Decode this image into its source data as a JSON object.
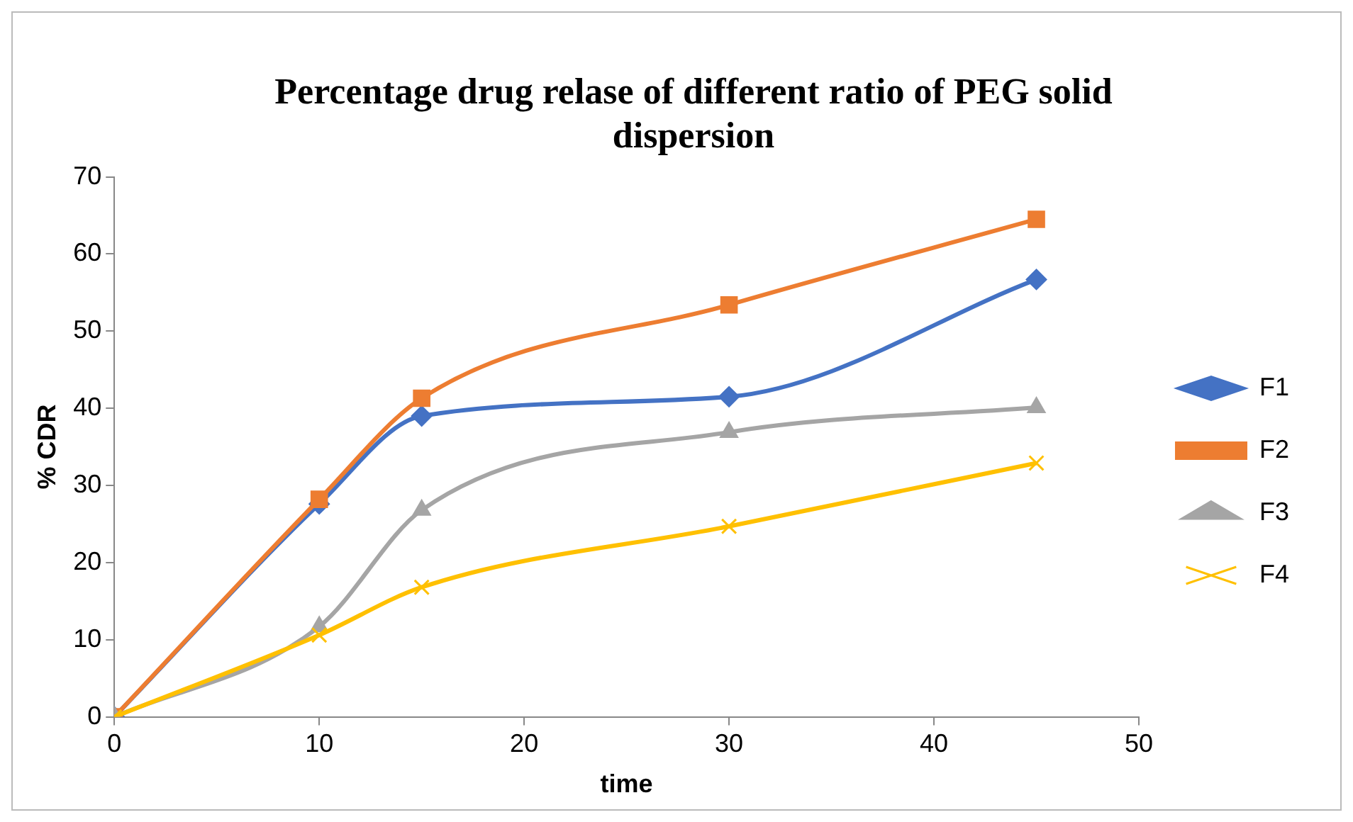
{
  "chart_data": {
    "type": "line",
    "title": "Percentage drug relase of different ratio of PEG solid dispersion",
    "xlabel": "time",
    "ylabel": "% CDR",
    "x": [
      0,
      10,
      15,
      30,
      45
    ],
    "series": [
      {
        "name": "F1",
        "color": "#4472c4",
        "marker": "diamond",
        "values": [
          0,
          27.6,
          39.0,
          41.5,
          56.7
        ]
      },
      {
        "name": "F2",
        "color": "#ed7d31",
        "marker": "square",
        "values": [
          0,
          28.2,
          41.3,
          53.4,
          64.5
        ]
      },
      {
        "name": "F3",
        "color": "#a5a5a5",
        "marker": "triangle",
        "values": [
          0,
          11.7,
          26.8,
          36.9,
          40.1
        ]
      },
      {
        "name": "F4",
        "color": "#ffc000",
        "marker": "cross",
        "values": [
          0,
          10.6,
          16.8,
          24.7,
          32.9
        ]
      }
    ],
    "xlim": [
      0,
      50
    ],
    "xticks": [
      0,
      10,
      20,
      30,
      40,
      50
    ],
    "ylim": [
      0,
      70
    ],
    "yticks": [
      0,
      10,
      20,
      30,
      40,
      50,
      60,
      70
    ],
    "grid": false,
    "legend": "right"
  }
}
